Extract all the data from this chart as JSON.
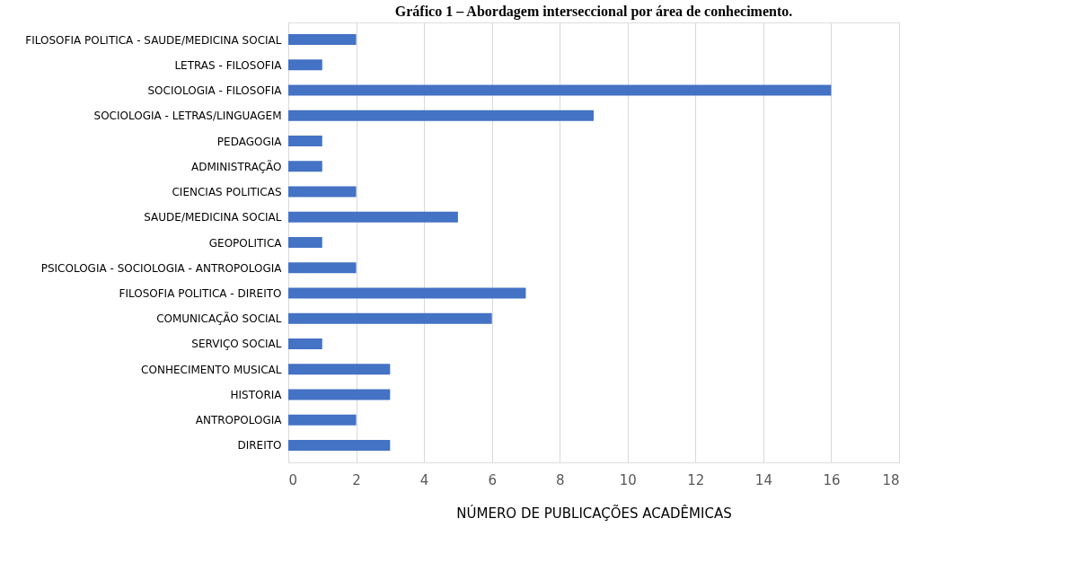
{
  "chart_data": {
    "type": "bar",
    "orientation": "horizontal",
    "title": "Gráfico 1 – Abordagem interseccional por área de conhecimento.",
    "xlabel": "NÚMERO DE PUBLICAÇÕES ACADÊMICAS",
    "categories": [
      "FILOSOFIA POLITICA  -  SAUDE/MEDICINA SOCIAL",
      "LETRAS  -  FILOSOFIA",
      "SOCIOLOGIA  -  FILOSOFIA",
      "SOCIOLOGIA  -  LETRAS/LINGUAGEM",
      "PEDAGOGIA",
      "ADMINISTRAÇÃO",
      "CIENCIAS POLITICAS",
      "SAUDE/MEDICINA SOCIAL",
      "GEOPOLITICA",
      "PSICOLOGIA  -  SOCIOLOGIA  -  ANTROPOLOGIA",
      "FILOSOFIA POLITICA  -  DIREITO",
      "COMUNICAÇÃO SOCIAL",
      "SERVIÇO SOCIAL",
      "CONHECIMENTO MUSICAL",
      "HISTORIA",
      "ANTROPOLOGIA",
      "DIREITO"
    ],
    "values": [
      2,
      1,
      16,
      9,
      1,
      1,
      2,
      5,
      1,
      2,
      7,
      6,
      1,
      3,
      3,
      2,
      3
    ],
    "color": "#4472c4",
    "xlim": [
      0,
      18
    ],
    "xticks": [
      0,
      2,
      4,
      6,
      8,
      10,
      12,
      14,
      16,
      18
    ],
    "grid": "x"
  }
}
